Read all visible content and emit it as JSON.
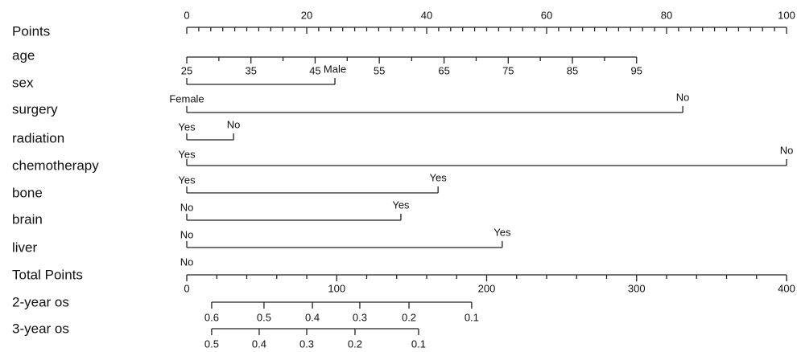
{
  "chart_data": {
    "type": "nomogram",
    "points": {
      "name": "Points",
      "xlim": [
        0,
        100
      ],
      "xticks": [
        0,
        20,
        40,
        60,
        80,
        100
      ]
    },
    "rows": [
      {
        "name": "age",
        "ticks": [
          25,
          35,
          45,
          55,
          65,
          75,
          85,
          95
        ],
        "points": [
          0,
          10.7,
          21.4,
          32.1,
          42.9,
          53.6,
          64.3,
          75
        ]
      },
      {
        "name": "sex",
        "ticks": [
          "Female",
          "Male"
        ],
        "points": [
          0,
          24.7
        ]
      },
      {
        "name": "surgery",
        "ticks": [
          "Yes",
          "No"
        ],
        "points": [
          0,
          82.7
        ]
      },
      {
        "name": "radiation",
        "ticks": [
          "Yes",
          "No"
        ],
        "points": [
          0,
          7.8
        ]
      },
      {
        "name": "chemotherapy",
        "ticks": [
          "Yes",
          "No"
        ],
        "points": [
          0,
          100
        ]
      },
      {
        "name": "bone",
        "ticks": [
          "No",
          "Yes"
        ],
        "points": [
          0,
          41.9
        ]
      },
      {
        "name": "brain",
        "ticks": [
          "No",
          "Yes"
        ],
        "points": [
          0,
          35.7
        ]
      },
      {
        "name": "liver",
        "ticks": [
          "No",
          "Yes"
        ],
        "points": [
          0,
          52.6
        ]
      }
    ],
    "total": {
      "name": "Total Points",
      "xlim": [
        0,
        400
      ],
      "xticks": [
        0,
        100,
        200,
        300,
        400
      ]
    },
    "outcomes": [
      {
        "name": "2-year os",
        "ticks": [
          0.6,
          0.5,
          0.4,
          0.3,
          0.2,
          0.1
        ],
        "total_points": [
          16.6,
          51.5,
          83.8,
          115.4,
          148.2,
          190
        ]
      },
      {
        "name": "3-year os",
        "ticks": [
          0.5,
          0.4,
          0.3,
          0.2,
          0.1
        ],
        "total_points": [
          16.6,
          48.3,
          80,
          112.2,
          154.6
        ]
      }
    ]
  }
}
